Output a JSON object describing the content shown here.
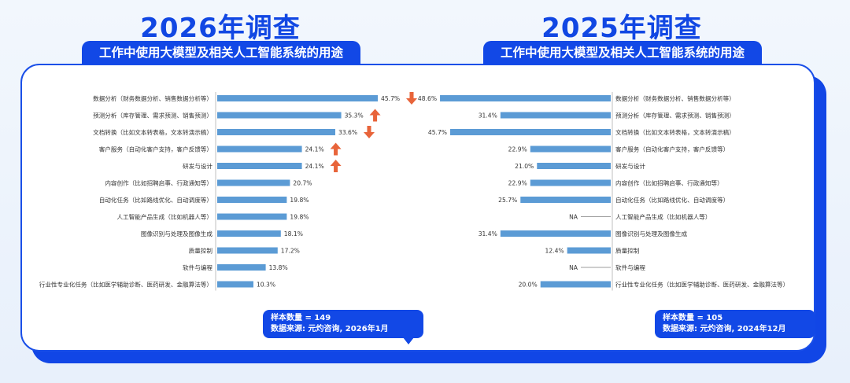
{
  "left": {
    "title": "2026年调查",
    "subtitle": "工作中使用大模型及相关人工智能系统的用途",
    "note_count": "样本数量 = 149",
    "note_source": "数据来源: 元灼咨询, 2026年1月"
  },
  "right": {
    "title": "2025年调查",
    "subtitle": "工作中使用大模型及相关人工智能系统的用途",
    "note_count": "样本数量 = 105",
    "note_source": "数据来源: 元灼咨询, 2024年12月"
  },
  "colors": {
    "bar": "#5b9bd5",
    "brand": "#1248e6",
    "up": "#e8643a",
    "down": "#e8643a"
  },
  "chart_data": [
    {
      "type": "bar",
      "orientation": "horizontal",
      "title": "2026年调查",
      "categories": [
        "数据分析（财务数据分析、销售数据分析等）",
        "预测分析（库存管理、需求预测、销售预测）",
        "文档转换（比如文本转表格，文本转演示稿）",
        "客户服务（自动化客户支持，客户反馈等）",
        "研发与设计",
        "内容创作（比如招聘启事、行政通知等）",
        "自动化任务（比如路线优化、自动调度等）",
        "人工智能产品生成（比如机器人等）",
        "图像识别与处理及图像生成",
        "质量控制",
        "软件与编程",
        "行业性专业化任务（比如医学辅助诊断、医药研发、金融算法等）"
      ],
      "values": [
        45.7,
        35.3,
        33.6,
        24.1,
        24.1,
        20.7,
        19.8,
        19.8,
        18.1,
        17.2,
        13.8,
        10.3
      ],
      "labels": [
        "45.7%",
        "35.3%",
        "33.6%",
        "24.1%",
        "24.1%",
        "20.7%",
        "19.8%",
        "19.8%",
        "18.1%",
        "17.2%",
        "13.8%",
        "10.3%"
      ],
      "trend": [
        "down",
        "up",
        "down",
        "up",
        "up",
        "",
        "",
        "",
        "",
        "",
        "",
        ""
      ],
      "xlim": [
        0,
        50
      ]
    },
    {
      "type": "bar",
      "orientation": "horizontal",
      "title": "2025年调查",
      "categories": [
        "数据分析（财务数据分析、销售数据分析等）",
        "预测分析（库存管理、需求预测、销售预测）",
        "文档转换（比如文本转表格，文本转演示稿）",
        "客户服务（自动化客户支持，客户反馈等）",
        "研发与设计",
        "内容创作（比如招聘启事、行政通知等）",
        "自动化任务（比如路线优化、自动调度等）",
        "人工智能产品生成（比如机器人等）",
        "图像识别与处理及图像生成",
        "质量控制",
        "软件与编程",
        "行业性专业化任务（比如医学辅助诊断、医药研发、金融算法等）"
      ],
      "values": [
        48.6,
        31.4,
        45.7,
        22.9,
        21.0,
        22.9,
        25.7,
        null,
        31.4,
        12.4,
        null,
        20.0
      ],
      "labels": [
        "48.6%",
        "31.4%",
        "45.7%",
        "22.9%",
        "21.0%",
        "22.9%",
        "25.7%",
        "NA",
        "31.4%",
        "12.4%",
        "NA",
        "20.0%"
      ],
      "xlim": [
        0,
        50
      ]
    }
  ]
}
